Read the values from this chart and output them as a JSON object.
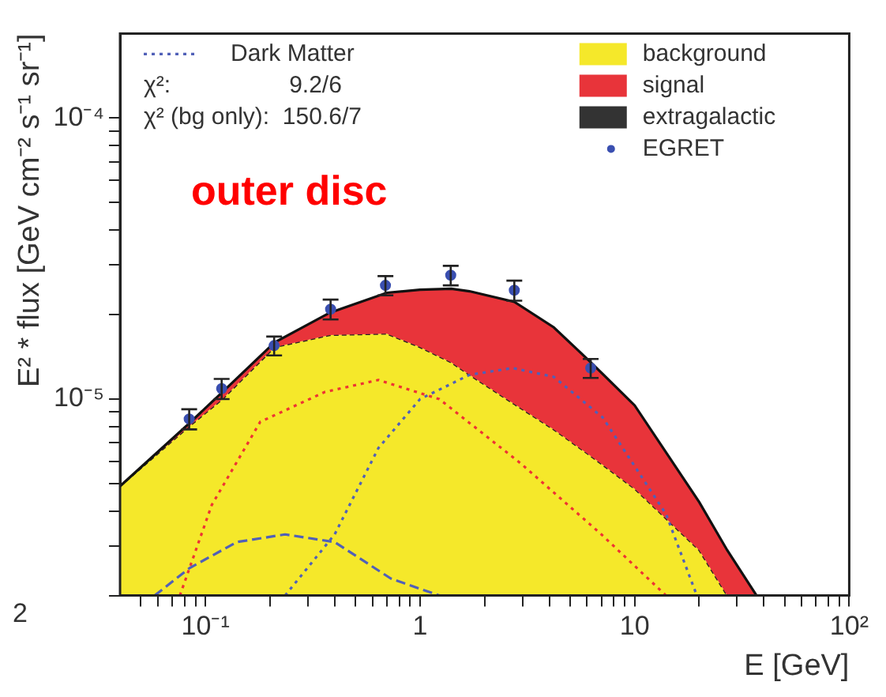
{
  "chart_data": {
    "type": "line",
    "xlabel": "E [GeV]",
    "ylabel": "E² * flux [GeV cm⁻² s⁻¹ sr⁻¹]",
    "log": "xy",
    "grid": false,
    "legend": "top",
    "annotations": [
      "2",
      "χ²:                  9.2/6",
      "χ² (bg only):  150.6/7",
      "outer disc"
    ],
    "xlim": [
      0.04,
      100
    ],
    "ylim": [
      2e-06,
      0.0002
    ],
    "xticks": [
      {
        "value": 0.05,
        "label": null
      },
      {
        "value": 0.06,
        "label": null
      },
      {
        "value": 0.07,
        "label": null
      },
      {
        "value": 0.08,
        "label": null
      },
      {
        "value": 0.09,
        "label": null
      },
      {
        "value": 0.1,
        "label": "10⁻¹"
      },
      {
        "value": 0.2,
        "label": null
      },
      {
        "value": 0.3,
        "label": null
      },
      {
        "value": 0.4,
        "label": null
      },
      {
        "value": 0.5,
        "label": null
      },
      {
        "value": 0.6,
        "label": null
      },
      {
        "value": 0.7,
        "label": null
      },
      {
        "value": 0.8,
        "label": null
      },
      {
        "value": 0.9,
        "label": null
      },
      1,
      {
        "value": 2,
        "label": null
      },
      {
        "value": 3,
        "label": null
      },
      {
        "value": 4,
        "label": null
      },
      {
        "value": 5,
        "label": null
      },
      {
        "value": 6,
        "label": null
      },
      {
        "value": 7,
        "label": null
      },
      {
        "value": 8,
        "label": null
      },
      {
        "value": 9,
        "label": null
      },
      10,
      {
        "value": 20,
        "label": null
      },
      {
        "value": 30,
        "label": null
      },
      {
        "value": 40,
        "label": null
      },
      {
        "value": 50,
        "label": null
      },
      {
        "value": 60,
        "label": null
      },
      {
        "value": 70,
        "label": null
      },
      {
        "value": 80,
        "label": null
      },
      {
        "value": 90,
        "label": null
      },
      {
        "value": 100,
        "label": "10²"
      }
    ],
    "yticks": [
      {
        "value": 2e-06,
        "label": null
      },
      {
        "value": 3e-06,
        "label": null
      },
      {
        "value": 4e-06,
        "label": null
      },
      {
        "value": 5e-06,
        "label": null
      },
      {
        "value": 6e-06,
        "label": null
      },
      {
        "value": 7e-06,
        "label": null
      },
      {
        "value": 8e-06,
        "label": null
      },
      {
        "value": 9e-06,
        "label": null
      },
      {
        "value": 1e-05,
        "label": "10⁻⁵"
      },
      {
        "value": 2e-05,
        "label": null
      },
      {
        "value": 3e-05,
        "label": null
      },
      {
        "value": 4e-05,
        "label": null
      },
      {
        "value": 5e-05,
        "label": null
      },
      {
        "value": 6e-05,
        "label": null
      },
      {
        "value": 7e-05,
        "label": null
      },
      {
        "value": 8e-05,
        "label": null
      },
      {
        "value": 9e-05,
        "label": null
      },
      {
        "value": 0.0001,
        "label": "10⁻⁴"
      }
    ],
    "series": [
      {
        "name": "background",
        "type": "area",
        "color": "#f5e82a",
        "x": [
          0.04,
          0.084,
          0.12,
          0.21,
          0.38,
          0.7,
          1.0,
          1.4,
          1.7,
          2.75,
          4.2,
          6.2,
          10,
          20,
          27,
          37
        ],
        "values": [
          4.9e-06,
          8e-06,
          1e-05,
          1.53e-05,
          1.69e-05,
          1.71e-05,
          1.53e-05,
          1.35e-05,
          1.22e-05,
          9.6e-06,
          7.8e-06,
          6.3e-06,
          4.8e-06,
          2.9e-06,
          2e-06,
          2e-06
        ]
      },
      {
        "name": "signal",
        "type": "area",
        "color": "#e8343a",
        "x": [
          0.04,
          0.084,
          0.12,
          0.21,
          0.38,
          0.7,
          1.0,
          1.4,
          1.7,
          2.75,
          4.2,
          6.2,
          10,
          20,
          27,
          37
        ],
        "values": [
          4.9e-06,
          8.2e-06,
          1.06e-05,
          1.59e-05,
          2.03e-05,
          2.39e-05,
          2.45e-05,
          2.47e-05,
          2.42e-05,
          2.22e-05,
          1.8e-05,
          1.36e-05,
          9.5e-06,
          4.3e-06,
          2.9e-06,
          2e-06
        ]
      },
      {
        "name": "extragalactic",
        "type": "area",
        "color": "#333333"
      },
      {
        "color": "#ee3333",
        "line_style": "dotted",
        "x": [
          0.076,
          0.107,
          0.18,
          0.36,
          0.64,
          1.23,
          2.95,
          7.0,
          14
        ],
        "values": [
          2e-06,
          4.2e-06,
          8.3e-06,
          1.06e-05,
          1.17e-05,
          1e-05,
          5.9e-06,
          3.3e-06,
          2e-06
        ]
      },
      {
        "color": "#5060b8",
        "line_style": "dashed",
        "x": [
          0.058,
          0.084,
          0.14,
          0.235,
          0.4,
          0.73,
          1.23
        ],
        "values": [
          2e-06,
          2.5e-06,
          3.1e-06,
          3.3e-06,
          3.1e-06,
          2.3e-06,
          2e-06
        ]
      },
      {
        "name": "Dark Matter",
        "color": "#5060b8",
        "line_style": "dotted",
        "x": [
          0.235,
          0.4,
          0.64,
          1.0,
          1.7,
          2.7,
          4.2,
          7.1,
          14,
          19.5
        ],
        "values": [
          2e-06,
          3.3e-06,
          6.7e-06,
          1e-05,
          1.22e-05,
          1.29e-05,
          1.2e-05,
          8.6e-06,
          3.9e-06,
          2e-06
        ]
      },
      {
        "name": "EGRET",
        "type": "scatter",
        "color": "#3a4fb0",
        "marker": "circle",
        "x": [
          0.084,
          0.119,
          0.209,
          0.383,
          0.69,
          1.39,
          2.75,
          6.24
        ],
        "values": [
          8.5e-06,
          1.09e-05,
          1.55e-05,
          2.09e-05,
          2.54e-05,
          2.76e-05,
          2.44e-05,
          1.29e-05
        ],
        "errors": [
          7e-07,
          9e-07,
          1.2e-06,
          1.7e-06,
          2e-06,
          2.2e-06,
          2e-06,
          1e-06
        ]
      }
    ]
  }
}
